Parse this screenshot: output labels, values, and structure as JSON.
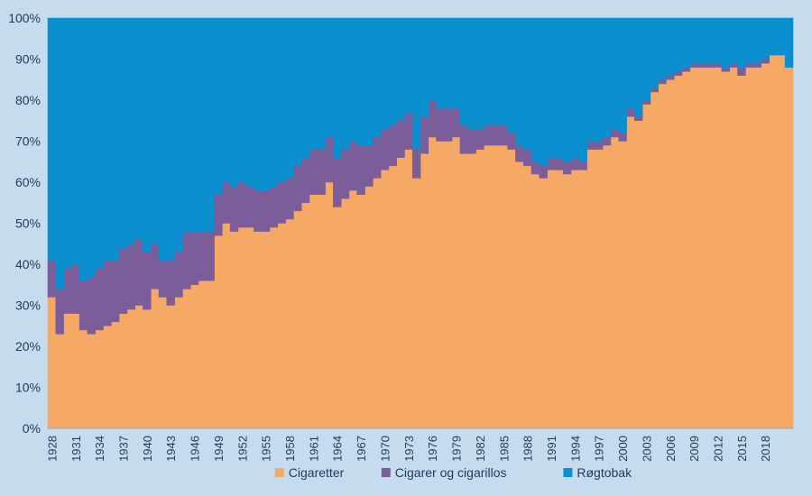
{
  "chart_data": {
    "type": "area",
    "stacked": true,
    "percent_stacked": true,
    "x_start": 1928,
    "x_end": 2020,
    "x_tick_labels": [
      "1928",
      "1931",
      "1934",
      "1937",
      "1940",
      "1943",
      "1946",
      "1949",
      "1952",
      "1955",
      "1958",
      "1961",
      "1964",
      "1967",
      "1970",
      "1973",
      "1976",
      "1979",
      "1982",
      "1985",
      "1988",
      "1991",
      "1994",
      "1997",
      "2000",
      "2003",
      "2006",
      "2009",
      "2012",
      "2015",
      "2018"
    ],
    "y_tick_labels": [
      "0%",
      "10%",
      "20%",
      "30%",
      "40%",
      "50%",
      "60%",
      "70%",
      "80%",
      "90%",
      "100%"
    ],
    "ylim": [
      0,
      100
    ],
    "legend_position": "bottom",
    "series": [
      {
        "name": "Cigaretter",
        "color": "#f6a964",
        "values": [
          32,
          23,
          28,
          28,
          24,
          23,
          24,
          25,
          26,
          28,
          29,
          30,
          29,
          34,
          32,
          30,
          32,
          34,
          35,
          36,
          36,
          47,
          50,
          48,
          49,
          49,
          48,
          48,
          49,
          50,
          51,
          53,
          55,
          57,
          57,
          60,
          54,
          56,
          58,
          57,
          59,
          61,
          63,
          64,
          66,
          68,
          61,
          67,
          71,
          70,
          70,
          71,
          67,
          67,
          68,
          69,
          69,
          69,
          68,
          65,
          64,
          62,
          61,
          63,
          63,
          62,
          63,
          63,
          68,
          68,
          69,
          71,
          70,
          76,
          75,
          79,
          82,
          84,
          85,
          86,
          87,
          88,
          88,
          88,
          88,
          87,
          88,
          86,
          88,
          88,
          89,
          91,
          91,
          88
        ]
      },
      {
        "name": "Cigarer og cigarillos",
        "color": "#7b5d9a",
        "values": [
          9,
          11,
          11,
          12,
          12,
          14,
          15,
          16,
          15,
          16,
          16,
          16,
          14,
          11,
          9,
          11,
          11,
          14,
          13,
          12,
          12,
          10,
          10,
          11,
          11,
          10,
          10,
          10,
          10,
          10,
          10,
          11,
          11,
          11,
          11,
          11,
          12,
          12,
          12,
          12,
          10,
          10,
          10,
          10,
          9,
          9,
          7,
          9,
          9,
          8,
          8,
          7,
          7,
          6,
          5,
          5,
          5,
          5,
          4,
          4,
          4,
          3,
          3,
          3,
          3,
          3,
          3,
          2,
          2,
          2,
          2,
          2,
          2,
          2,
          1,
          1,
          1,
          1,
          1,
          1,
          1,
          1,
          1,
          1,
          1,
          1,
          1,
          2,
          1,
          1,
          1,
          0,
          0,
          0
        ]
      },
      {
        "name": "Røgtobak",
        "color": "#0a8fcf",
        "values": [
          59,
          66,
          61,
          60,
          64,
          63,
          61,
          59,
          59,
          56,
          55,
          54,
          57,
          55,
          59,
          59,
          57,
          52,
          52,
          52,
          52,
          43,
          40,
          41,
          40,
          41,
          42,
          42,
          41,
          40,
          39,
          36,
          34,
          32,
          32,
          29,
          34,
          32,
          30,
          31,
          31,
          29,
          27,
          26,
          25,
          23,
          32,
          24,
          20,
          22,
          22,
          22,
          26,
          27,
          27,
          26,
          26,
          26,
          28,
          31,
          32,
          35,
          36,
          34,
          34,
          35,
          34,
          35,
          30,
          30,
          29,
          27,
          28,
          22,
          24,
          20,
          17,
          15,
          14,
          13,
          12,
          11,
          11,
          11,
          11,
          12,
          11,
          12,
          11,
          11,
          10,
          9,
          9,
          12
        ]
      }
    ]
  }
}
